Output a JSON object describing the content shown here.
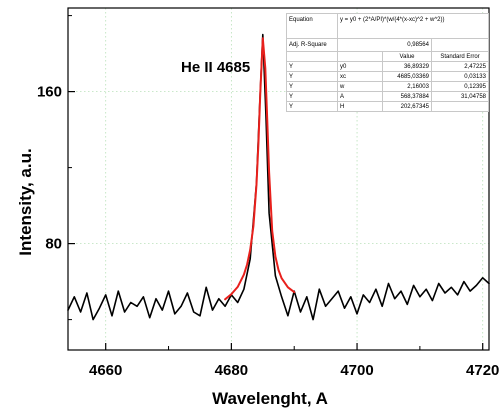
{
  "chart_data": {
    "type": "line",
    "title": "",
    "xlabel": "Wavelenght, A",
    "ylabel": "Intensity, a.u.",
    "xlim": [
      4654,
      4721
    ],
    "ylim": [
      24,
      204
    ],
    "xticks": [
      4660,
      4680,
      4700,
      4720
    ],
    "yticks": [
      80,
      160
    ],
    "grid": true,
    "annotation": "He II 4685",
    "series": [
      {
        "color": "#000000",
        "x": [
          4654,
          4655,
          4656,
          4657,
          4658,
          4659,
          4660,
          4661,
          4662,
          4663,
          4664,
          4665,
          4666,
          4667,
          4668,
          4669,
          4670,
          4671,
          4672,
          4673,
          4674,
          4675,
          4676,
          4677,
          4678,
          4679,
          4680,
          4681,
          4682,
          4683,
          4684,
          4684.5,
          4685,
          4685.5,
          4686,
          4687,
          4688,
          4689,
          4690,
          4691,
          4692,
          4693,
          4694,
          4695,
          4696,
          4697,
          4698,
          4699,
          4700,
          4701,
          4702,
          4703,
          4704,
          4705,
          4706,
          4707,
          4708,
          4709,
          4710,
          4711,
          4712,
          4713,
          4714,
          4715,
          4716,
          4717,
          4718,
          4719,
          4720,
          4721
        ],
        "y": [
          45,
          52,
          44,
          54,
          40,
          46,
          53,
          42,
          55,
          44,
          49,
          47,
          52,
          41,
          51,
          45,
          55,
          43,
          47,
          54,
          44,
          42,
          57,
          45,
          51,
          47,
          53,
          49,
          56,
          72,
          112,
          152,
          190,
          148,
          96,
          63,
          52,
          42,
          55,
          44,
          52,
          40,
          56,
          47,
          51,
          55,
          46,
          52,
          43,
          53,
          49,
          56,
          47,
          59,
          51,
          55,
          48,
          58,
          52,
          56,
          50,
          59,
          54,
          57,
          53,
          60,
          55,
          58,
          62,
          59
        ]
      },
      {
        "color": "#e8201c",
        "x": [
          4679,
          4680,
          4681,
          4682,
          4682.5,
          4683,
          4683.5,
          4684,
          4684.3,
          4684.6,
          4685,
          4685.4,
          4685.7,
          4686,
          4686.5,
          4687,
          4687.5,
          4688,
          4689,
          4690
        ],
        "y": [
          50.7,
          53.4,
          57.2,
          63.7,
          69.0,
          76.8,
          89.1,
          111.2,
          132.4,
          159.5,
          188.1,
          172.3,
          145.6,
          117.6,
          86.7,
          73.2,
          66.1,
          61.8,
          57.0,
          54.5
        ]
      }
    ],
    "fit_table": {
      "equation_label": "Equation",
      "equation": "y = y0 + (2*A/PI)*(w/(4*(x-xc)^2 + w^2))",
      "adj_r_label": "Adj. R-Square",
      "adj_r_value": "0,98564",
      "header_value": "Value",
      "header_error": "Standard Error",
      "rows": [
        {
          "group": "Y",
          "param": "y0",
          "value": "36,89329",
          "error": "2,47225"
        },
        {
          "group": "Y",
          "param": "xc",
          "value": "4685,03369",
          "error": "0,03133"
        },
        {
          "group": "Y",
          "param": "w",
          "value": "2,16003",
          "error": "0,12395"
        },
        {
          "group": "Y",
          "param": "A",
          "value": "568,37884",
          "error": "31,04758"
        },
        {
          "group": "Y",
          "param": "H",
          "value": "202,67345",
          "error": ""
        }
      ]
    }
  }
}
